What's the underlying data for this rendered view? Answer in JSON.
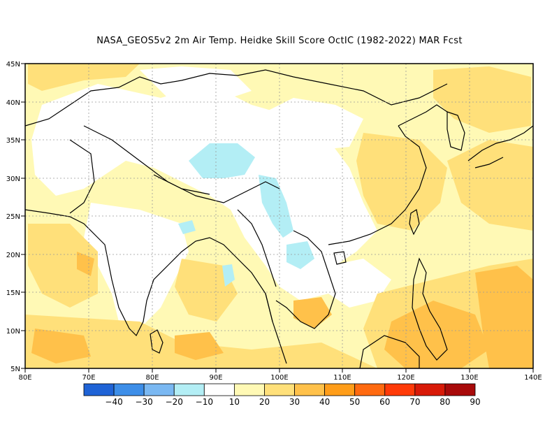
{
  "title": "NASA_GEOS5v2  2m Air Temp. Heidke Skill Score OctIC (1982-2022) MAR Fcst",
  "map": {
    "lon_range": [
      80,
      140
    ],
    "lat_range": [
      5,
      45
    ],
    "lon_ticks": [
      "80E",
      "70E",
      "80E",
      "90E",
      "100E",
      "110E",
      "120E",
      "130E",
      "140E"
    ],
    "lat_ticks": [
      "5N",
      "10N",
      "15N",
      "20N",
      "25N",
      "30N",
      "35N",
      "40N",
      "45N"
    ]
  },
  "colorbar": {
    "colors": [
      "#1f63d6",
      "#3d8ee8",
      "#7ab8f2",
      "#b3eef5",
      "#ffffff",
      "#fff9b5",
      "#ffe07a",
      "#ffc14a",
      "#ff9d19",
      "#ff6a10",
      "#ff3a08",
      "#d81a08",
      "#a80a0a"
    ],
    "labels": [
      "-40",
      "-30",
      "-20",
      "-10",
      "10",
      "20",
      "30",
      "40",
      "50",
      "60",
      "70",
      "80",
      "90"
    ]
  },
  "colors": {
    "ocean": "#fff9b5",
    "land_white": "#ffffff",
    "yellow": "#ffe07a",
    "orange": "#ffc14a",
    "cyan": "#b3eef5",
    "border": "#000000"
  }
}
